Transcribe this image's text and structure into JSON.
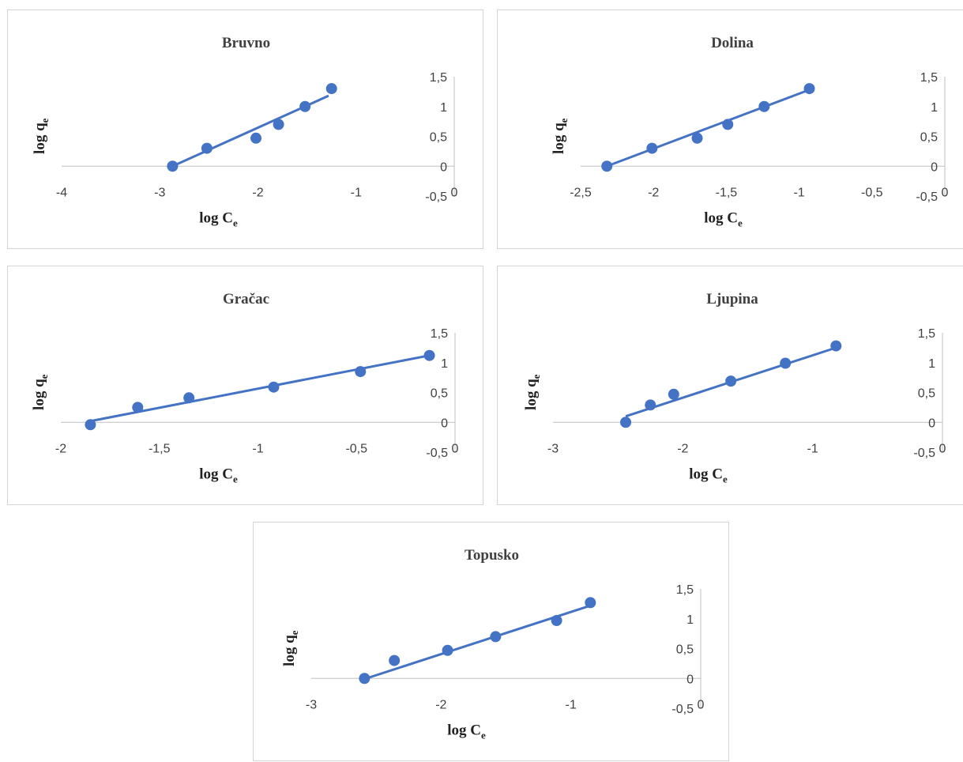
{
  "chart_data": [
    {
      "type": "scatter",
      "title": "Bruvno",
      "xlabel": "log C",
      "xlabel_sub": "e",
      "ylabel": "log q",
      "ylabel_sub": "e",
      "xlim": [
        -4,
        0
      ],
      "ylim": [
        -0.5,
        1.5
      ],
      "xticks": [
        "-4",
        "-3",
        "-2",
        "-1",
        "0"
      ],
      "yticks": [
        "1,5",
        "1",
        "0,5",
        "0",
        "-0,5"
      ],
      "points": [
        [
          -2.87,
          0.0
        ],
        [
          -2.52,
          0.3
        ],
        [
          -2.02,
          0.47
        ],
        [
          -1.79,
          0.7
        ],
        [
          -1.52,
          1.0
        ],
        [
          -1.25,
          1.3
        ]
      ],
      "trendline": [
        [
          -2.87,
          0.0
        ],
        [
          -1.28,
          1.18
        ]
      ],
      "grid": false,
      "legend": "none",
      "color": "#4472c4"
    },
    {
      "type": "scatter",
      "title": "Dolina",
      "xlabel": "log C",
      "xlabel_sub": "e",
      "ylabel": "log q",
      "ylabel_sub": "e",
      "xlim": [
        -2.5,
        0
      ],
      "ylim": [
        -0.5,
        1.5
      ],
      "xticks": [
        "-2,5",
        "-2",
        "-1,5",
        "-1",
        "-0,5",
        "0"
      ],
      "yticks": [
        "1,5",
        "1",
        "0,5",
        "0",
        "-0,5"
      ],
      "points": [
        [
          -2.32,
          0.0
        ],
        [
          -2.01,
          0.3
        ],
        [
          -1.7,
          0.47
        ],
        [
          -1.49,
          0.7
        ],
        [
          -1.24,
          1.0
        ],
        [
          -0.93,
          1.3
        ]
      ],
      "trendline": [
        [
          -2.32,
          0.0
        ],
        [
          -0.93,
          1.28
        ]
      ],
      "grid": false,
      "legend": "none",
      "color": "#4472c4"
    },
    {
      "type": "scatter",
      "title": "Gračac",
      "xlabel": "log C",
      "xlabel_sub": "e",
      "ylabel": "log q",
      "ylabel_sub": "e",
      "xlim": [
        -2,
        0
      ],
      "ylim": [
        -0.5,
        1.5
      ],
      "xticks": [
        "-2",
        "-1,5",
        "-1",
        "-0,5",
        "0"
      ],
      "yticks": [
        "1,5",
        "1",
        "0,5",
        "0",
        "-0,5"
      ],
      "points": [
        [
          -1.85,
          -0.04
        ],
        [
          -1.61,
          0.25
        ],
        [
          -1.35,
          0.41
        ],
        [
          -0.92,
          0.59
        ],
        [
          -0.48,
          0.85
        ],
        [
          -0.13,
          1.12
        ]
      ],
      "trendline": [
        [
          -1.85,
          0.02
        ],
        [
          -0.13,
          1.12
        ]
      ],
      "grid": false,
      "legend": "none",
      "color": "#4472c4"
    },
    {
      "type": "scatter",
      "title": "Ljupina",
      "xlabel": "log C",
      "xlabel_sub": "e",
      "ylabel": "log q",
      "ylabel_sub": "e",
      "xlim": [
        -3,
        0
      ],
      "ylim": [
        -0.5,
        1.5
      ],
      "xticks": [
        "-3",
        "-2",
        "-1",
        "0"
      ],
      "yticks": [
        "1,5",
        "1",
        "0,5",
        "0",
        "-0,5"
      ],
      "points": [
        [
          -2.44,
          0.0
        ],
        [
          -2.25,
          0.29
        ],
        [
          -2.07,
          0.47
        ],
        [
          -1.63,
          0.69
        ],
        [
          -1.21,
          0.99
        ],
        [
          -0.82,
          1.28
        ]
      ],
      "trendline": [
        [
          -2.44,
          0.1
        ],
        [
          -0.82,
          1.25
        ]
      ],
      "grid": false,
      "legend": "none",
      "color": "#4472c4"
    },
    {
      "type": "scatter",
      "title": "Topusko",
      "xlabel": "log C",
      "xlabel_sub": "e",
      "ylabel": "log q",
      "ylabel_sub": "e",
      "xlim": [
        -3,
        0
      ],
      "ylim": [
        -0.5,
        1.5
      ],
      "xticks": [
        "-3",
        "-2",
        "-1",
        "0"
      ],
      "yticks": [
        "1,5",
        "1",
        "0,5",
        "0",
        "-0,5"
      ],
      "points": [
        [
          -2.59,
          0.0
        ],
        [
          -2.36,
          0.3
        ],
        [
          -1.95,
          0.47
        ],
        [
          -1.58,
          0.7
        ],
        [
          -1.11,
          0.97
        ],
        [
          -0.85,
          1.27
        ]
      ],
      "trendline": [
        [
          -2.59,
          -0.01
        ],
        [
          -0.85,
          1.22
        ]
      ],
      "grid": false,
      "legend": "none",
      "color": "#4472c4"
    }
  ]
}
